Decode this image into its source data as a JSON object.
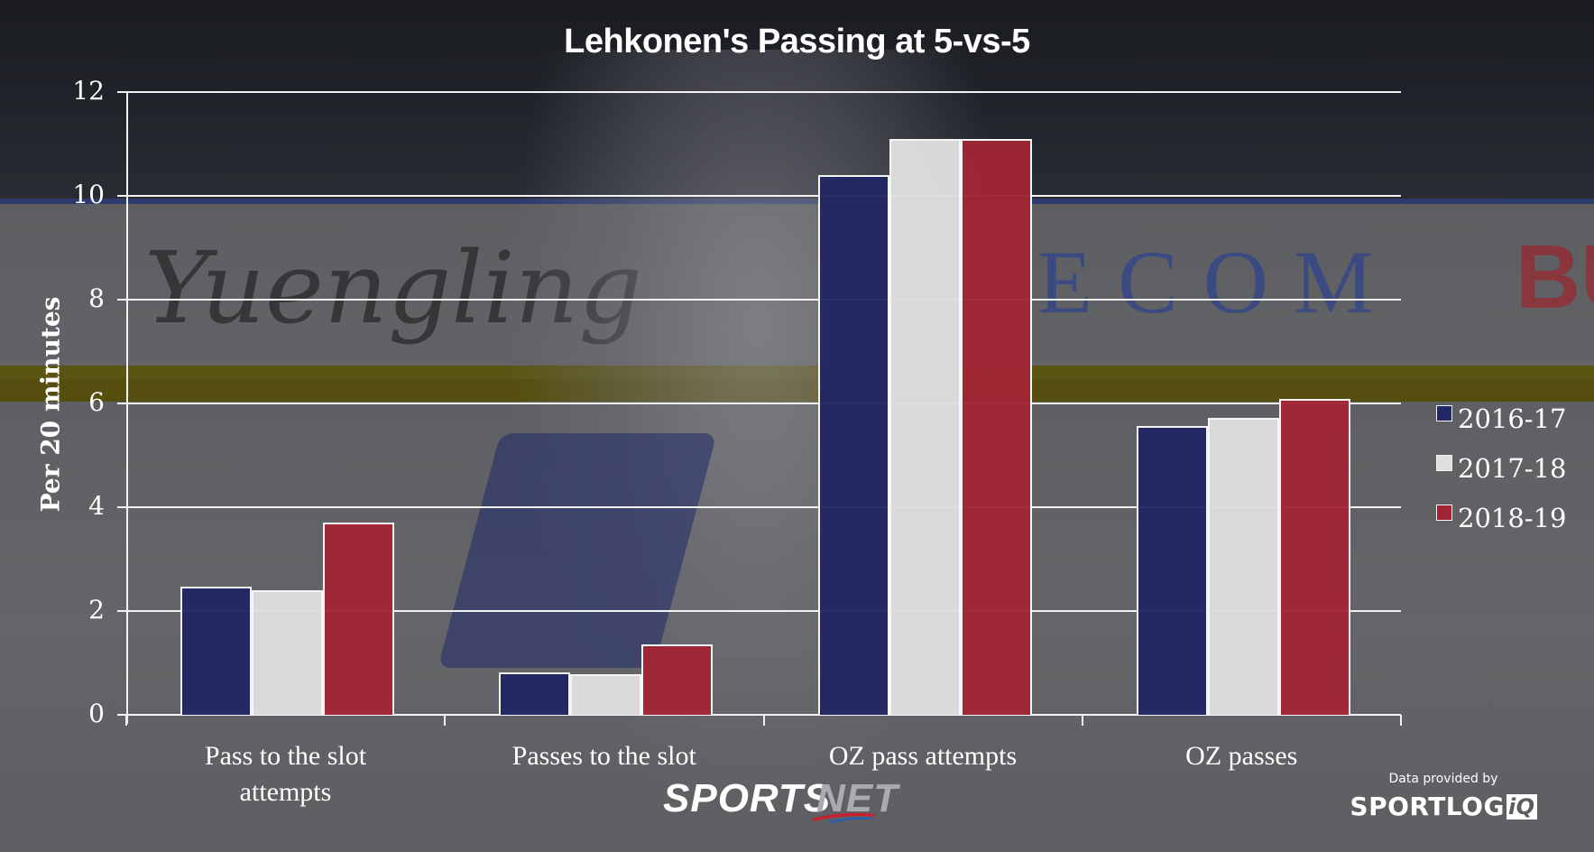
{
  "title": "Lehkonen's Passing at 5-vs-5",
  "y_axis": {
    "label": "Per 20 minutes",
    "ticks": [
      "0",
      "2",
      "4",
      "6",
      "8",
      "10",
      "12"
    ]
  },
  "categories": [
    {
      "line1": "Pass to the slot",
      "line2": "attempts"
    },
    {
      "line1": "Passes to the slot",
      "line2": ""
    },
    {
      "line1": "OZ pass attempts",
      "line2": ""
    },
    {
      "line1": "OZ passes",
      "line2": ""
    }
  ],
  "legend": [
    {
      "label": "2016-17",
      "color": "#212664"
    },
    {
      "label": "2017-18",
      "color": "#dedede"
    },
    {
      "label": "2018-19",
      "color": "#a02534"
    }
  ],
  "branding": {
    "sportsnet_sports": "SPORTS",
    "sportsnet_net": "NET",
    "credit_text": "Data provided by",
    "credit_logo_main": "SPORTLOG",
    "credit_logo_iq": "iQ"
  },
  "chart_data": {
    "type": "bar",
    "title": "Lehkonen's Passing at 5-vs-5",
    "xlabel": "",
    "ylabel": "Per 20 minutes",
    "ylim": [
      0,
      12
    ],
    "yticks": [
      0,
      2,
      4,
      6,
      8,
      10,
      12
    ],
    "grid": true,
    "legend_position": "right",
    "categories": [
      "Pass to the slot attempts",
      "Passes to the slot",
      "OZ pass attempts",
      "OZ passes"
    ],
    "series": [
      {
        "name": "2016-17",
        "color": "#212664",
        "values": [
          2.47,
          0.82,
          10.4,
          5.57
        ]
      },
      {
        "name": "2017-18",
        "color": "#dedede",
        "values": [
          2.4,
          0.78,
          11.1,
          5.72
        ]
      },
      {
        "name": "2018-19",
        "color": "#a02534",
        "values": [
          3.7,
          1.36,
          11.1,
          6.09
        ]
      }
    ]
  }
}
